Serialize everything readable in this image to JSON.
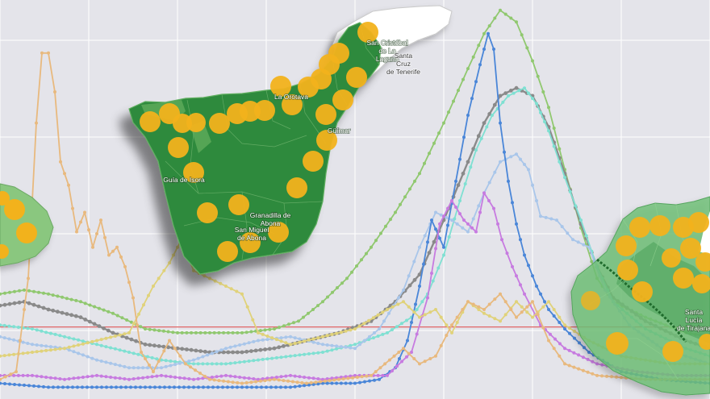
{
  "colors": {
    "background": "#e4e4ea",
    "grid": "#ffffff",
    "threshold": "#e06666",
    "island_fill": "#2f8a3e",
    "island_border": "#1f6b2c",
    "island_light": "#7fbf7a",
    "bubble": "#f2b21c",
    "north_area": "#ffffff"
  },
  "chart_data": {
    "type": "line",
    "title": "",
    "xlabel": "",
    "ylabel": "",
    "grid": true,
    "legend": "none",
    "xlim": [
      0,
      880
    ],
    "ylim": [
      0,
      100
    ],
    "threshold": 17.5,
    "series": [
      {
        "color": "#90c86f",
        "values": [
          [
            0,
            26
          ],
          [
            30,
            27
          ],
          [
            60,
            26
          ],
          [
            100,
            24
          ],
          [
            140,
            21
          ],
          [
            180,
            17
          ],
          [
            220,
            16
          ],
          [
            260,
            16
          ],
          [
            300,
            16
          ],
          [
            340,
            17
          ],
          [
            370,
            19
          ],
          [
            400,
            24
          ],
          [
            430,
            30
          ],
          [
            460,
            38
          ],
          [
            490,
            47
          ],
          [
            520,
            57
          ],
          [
            550,
            70
          ],
          [
            580,
            84
          ],
          [
            600,
            93
          ],
          [
            620,
            99
          ],
          [
            640,
            96
          ],
          [
            660,
            86
          ],
          [
            680,
            74
          ],
          [
            700,
            58
          ],
          [
            720,
            43
          ],
          [
            740,
            30
          ],
          [
            760,
            24
          ],
          [
            800,
            20
          ],
          [
            850,
            16
          ],
          [
            880,
            15
          ]
        ]
      },
      {
        "color": "#8a8a8a",
        "values": [
          [
            0,
            23
          ],
          [
            30,
            24
          ],
          [
            60,
            22
          ],
          [
            100,
            20
          ],
          [
            140,
            16
          ],
          [
            180,
            13
          ],
          [
            220,
            12
          ],
          [
            260,
            11
          ],
          [
            300,
            11
          ],
          [
            340,
            12
          ],
          [
            380,
            14
          ],
          [
            420,
            16
          ],
          [
            460,
            19
          ],
          [
            490,
            24
          ],
          [
            520,
            31
          ],
          [
            550,
            45
          ],
          [
            580,
            60
          ],
          [
            600,
            70
          ],
          [
            620,
            77
          ],
          [
            640,
            79
          ],
          [
            660,
            77
          ],
          [
            680,
            69
          ],
          [
            700,
            57
          ],
          [
            720,
            44
          ],
          [
            740,
            33
          ],
          [
            760,
            25
          ],
          [
            800,
            19
          ],
          [
            850,
            14
          ],
          [
            880,
            12
          ]
        ]
      },
      {
        "color": "#7fe0d2",
        "values": [
          [
            0,
            18
          ],
          [
            40,
            17
          ],
          [
            80,
            15
          ],
          [
            120,
            13
          ],
          [
            160,
            11
          ],
          [
            200,
            9
          ],
          [
            240,
            8
          ],
          [
            280,
            8
          ],
          [
            320,
            9
          ],
          [
            360,
            10
          ],
          [
            400,
            11
          ],
          [
            440,
            13
          ],
          [
            480,
            16
          ],
          [
            510,
            20
          ],
          [
            530,
            26
          ],
          [
            550,
            36
          ],
          [
            570,
            50
          ],
          [
            590,
            63
          ],
          [
            610,
            72
          ],
          [
            630,
            77
          ],
          [
            650,
            79
          ],
          [
            665,
            75
          ],
          [
            680,
            68
          ],
          [
            700,
            56
          ],
          [
            720,
            45
          ],
          [
            740,
            33
          ],
          [
            760,
            24
          ],
          [
            800,
            17
          ],
          [
            850,
            12
          ],
          [
            880,
            10
          ]
        ]
      },
      {
        "color": "#a9c6ea",
        "values": [
          [
            0,
            15
          ],
          [
            40,
            13
          ],
          [
            80,
            12
          ],
          [
            120,
            9
          ],
          [
            160,
            7
          ],
          [
            200,
            7
          ],
          [
            240,
            9
          ],
          [
            280,
            12
          ],
          [
            320,
            14
          ],
          [
            360,
            15
          ],
          [
            400,
            13
          ],
          [
            440,
            12
          ],
          [
            470,
            17
          ],
          [
            500,
            27
          ],
          [
            520,
            38
          ],
          [
            540,
            47
          ],
          [
            560,
            45
          ],
          [
            580,
            42
          ],
          [
            600,
            52
          ],
          [
            620,
            60
          ],
          [
            640,
            62
          ],
          [
            655,
            58
          ],
          [
            670,
            46
          ],
          [
            690,
            45
          ],
          [
            710,
            40
          ],
          [
            730,
            38
          ],
          [
            750,
            27
          ],
          [
            780,
            18
          ],
          [
            820,
            12
          ],
          [
            880,
            8
          ]
        ]
      },
      {
        "color": "#4a86d8",
        "values": [
          [
            0,
            3
          ],
          [
            60,
            2
          ],
          [
            120,
            2
          ],
          [
            180,
            2
          ],
          [
            240,
            2
          ],
          [
            300,
            2
          ],
          [
            360,
            2
          ],
          [
            400,
            3
          ],
          [
            440,
            3
          ],
          [
            470,
            4
          ],
          [
            490,
            7
          ],
          [
            505,
            14
          ],
          [
            520,
            28
          ],
          [
            535,
            45
          ],
          [
            550,
            38
          ],
          [
            565,
            55
          ],
          [
            580,
            72
          ],
          [
            595,
            85
          ],
          [
            605,
            93
          ],
          [
            612,
            89
          ],
          [
            620,
            70
          ],
          [
            630,
            55
          ],
          [
            640,
            44
          ],
          [
            650,
            36
          ],
          [
            665,
            28
          ],
          [
            680,
            22
          ],
          [
            700,
            17
          ],
          [
            730,
            11
          ],
          [
            770,
            6
          ],
          [
            820,
            4
          ],
          [
            880,
            3
          ]
        ]
      },
      {
        "color": "#c77be0",
        "values": [
          [
            0,
            5
          ],
          [
            40,
            5
          ],
          [
            80,
            4
          ],
          [
            120,
            5
          ],
          [
            160,
            4
          ],
          [
            200,
            5
          ],
          [
            240,
            4
          ],
          [
            280,
            5
          ],
          [
            320,
            4
          ],
          [
            360,
            5
          ],
          [
            400,
            4
          ],
          [
            440,
            5
          ],
          [
            480,
            5
          ],
          [
            510,
            11
          ],
          [
            530,
            25
          ],
          [
            545,
            44
          ],
          [
            560,
            50
          ],
          [
            575,
            45
          ],
          [
            590,
            42
          ],
          [
            600,
            52
          ],
          [
            612,
            48
          ],
          [
            622,
            40
          ],
          [
            635,
            33
          ],
          [
            650,
            26
          ],
          [
            670,
            18
          ],
          [
            700,
            12
          ],
          [
            740,
            8
          ],
          [
            790,
            6
          ],
          [
            840,
            5
          ],
          [
            880,
            5
          ]
        ]
      },
      {
        "color": "#e0d27a",
        "values": [
          [
            0,
            10
          ],
          [
            40,
            11
          ],
          [
            80,
            12
          ],
          [
            120,
            14
          ],
          [
            160,
            16
          ],
          [
            190,
            28
          ],
          [
            210,
            34
          ],
          [
            225,
            40
          ],
          [
            240,
            32
          ],
          [
            260,
            30
          ],
          [
            280,
            28
          ],
          [
            300,
            26
          ],
          [
            320,
            16
          ],
          [
            360,
            13
          ],
          [
            400,
            15
          ],
          [
            440,
            17
          ],
          [
            480,
            22
          ],
          [
            500,
            24
          ],
          [
            520,
            20
          ],
          [
            540,
            22
          ],
          [
            560,
            16
          ],
          [
            580,
            24
          ],
          [
            600,
            21
          ],
          [
            620,
            19
          ],
          [
            640,
            24
          ],
          [
            660,
            20
          ],
          [
            680,
            24
          ],
          [
            700,
            18
          ],
          [
            730,
            14
          ],
          [
            770,
            10
          ],
          [
            830,
            8
          ],
          [
            880,
            8
          ]
        ]
      },
      {
        "color": "#e8b97e",
        "values": [
          [
            0,
            4
          ],
          [
            20,
            6
          ],
          [
            35,
            30
          ],
          [
            45,
            70
          ],
          [
            52,
            88
          ],
          [
            60,
            88
          ],
          [
            68,
            78
          ],
          [
            75,
            60
          ],
          [
            85,
            54
          ],
          [
            95,
            42
          ],
          [
            105,
            47
          ],
          [
            115,
            38
          ],
          [
            125,
            45
          ],
          [
            135,
            36
          ],
          [
            145,
            38
          ],
          [
            155,
            33
          ],
          [
            165,
            25
          ],
          [
            175,
            11
          ],
          [
            190,
            6
          ],
          [
            210,
            14
          ],
          [
            230,
            8
          ],
          [
            260,
            4
          ],
          [
            300,
            3
          ],
          [
            340,
            4
          ],
          [
            380,
            3
          ],
          [
            420,
            4
          ],
          [
            460,
            5
          ],
          [
            500,
            12
          ],
          [
            520,
            8
          ],
          [
            540,
            10
          ],
          [
            560,
            18
          ],
          [
            580,
            24
          ],
          [
            600,
            22
          ],
          [
            620,
            26
          ],
          [
            640,
            20
          ],
          [
            660,
            24
          ],
          [
            680,
            14
          ],
          [
            700,
            8
          ],
          [
            740,
            5
          ],
          [
            800,
            4
          ],
          [
            880,
            4
          ]
        ]
      }
    ]
  },
  "map": {
    "tenerife_towns": [
      {
        "label": "San Cristóbal\nde La\nLaguna",
        "dark": false
      },
      {
        "label": "Santa\nCruz\nde Tenerife",
        "dark": true
      },
      {
        "label": "La Orotava",
        "dark": false
      },
      {
        "label": "Güímar",
        "dark": false
      },
      {
        "label": "Guía de Isora",
        "dark": false
      },
      {
        "label": "Granadilla de\nAbona",
        "dark": false
      },
      {
        "label": "San Miguel\nde Abona",
        "dark": false
      }
    ],
    "gran_canaria_towns": [
      {
        "label": "Santa\nLucía\nde Tirajana",
        "dark": false
      }
    ]
  }
}
